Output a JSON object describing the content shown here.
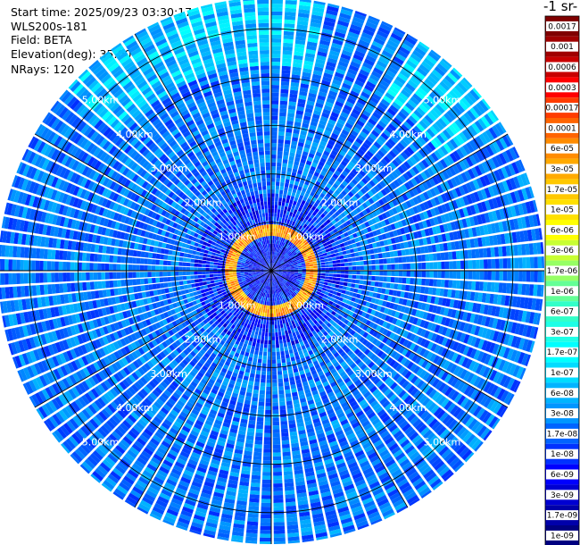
{
  "info": {
    "start_time": "Start time: 2025/09/23 03:30:17",
    "instrument": "WLS200s-181",
    "field": "Field: BETA",
    "elevation": "Elevation(deg): 35.00",
    "nrays": "NRays: 120"
  },
  "colorbar": {
    "title": "-1 sr-",
    "ticks": [
      "0.0017",
      "0.001",
      "0.0006",
      "0.0003",
      "0.00017",
      "0.0001",
      "6e-05",
      "3e-05",
      "1.7e-05",
      "1e-05",
      "6e-06",
      "3e-06",
      "1.7e-06",
      "1e-06",
      "6e-07",
      "3e-07",
      "1.7e-07",
      "1e-07",
      "6e-08",
      "3e-08",
      "1.7e-08",
      "1e-08",
      "6e-09",
      "3e-09",
      "1.7e-09",
      "1e-09"
    ],
    "colors": [
      "#800000",
      "#a00000",
      "#c80000",
      "#ff0000",
      "#ff3c00",
      "#ff6400",
      "#ff8c00",
      "#ffaa00",
      "#ffc800",
      "#ffe000",
      "#ffff00",
      "#c8ff32",
      "#96ff64",
      "#64ff96",
      "#32ffc8",
      "#1effe6",
      "#00ffff",
      "#00dcff",
      "#00b4ff",
      "#0096ff",
      "#0064ff",
      "#0032ff",
      "#0000ff",
      "#0000d2",
      "#0000aa",
      "#000080"
    ]
  },
  "chart_data": {
    "type": "heatmap",
    "projection": "polar PPI scan",
    "field": "BETA",
    "elevation_deg": 35.0,
    "n_rays": 120,
    "range_unit": "km",
    "range_ring_labels": [
      "1.00km",
      "2.00km",
      "3.00km",
      "4.00km",
      "5.00km"
    ],
    "range_rings_km": [
      1,
      2,
      3,
      4,
      5
    ],
    "max_range_km": 5.65,
    "color_scale": "log",
    "vmin": 1e-09,
    "vmax": 0.0017,
    "near_range_ring_km": 0.8,
    "near_range_ring_value": 3e-05,
    "background_value": 3e-08
  }
}
